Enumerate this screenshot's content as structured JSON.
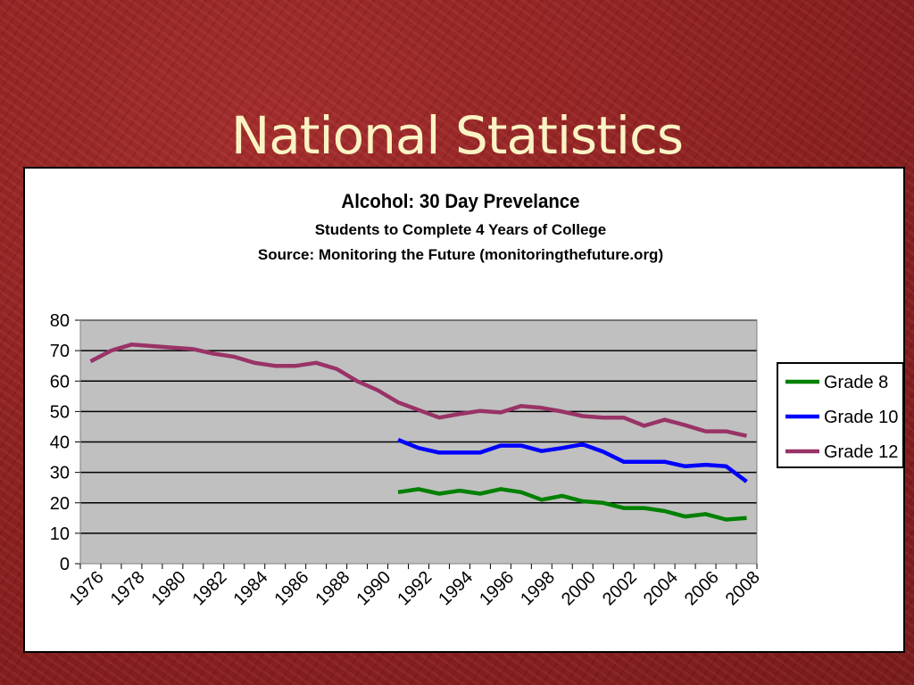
{
  "slide": {
    "title": "National Statistics"
  },
  "chart_data": {
    "type": "line",
    "title": "Alcohol: 30 Day Prevelance",
    "subtitle": "Students to Complete 4 Years of College",
    "source": "Source: Monitoring the Future (monitoringthefuture.org)",
    "xlabel": "",
    "ylabel": "",
    "ylim": [
      0,
      80
    ],
    "yticks": [
      0,
      10,
      20,
      30,
      40,
      50,
      60,
      70,
      80
    ],
    "xlim": [
      1976,
      2009
    ],
    "xticks": [
      "1976",
      "1978",
      "1980",
      "1982",
      "1984",
      "1986",
      "1988",
      "1990",
      "1992",
      "1994",
      "1996",
      "1998",
      "2000",
      "2002",
      "2004",
      "2006",
      "2008"
    ],
    "grid": "horizontal",
    "plot_background": "#c0c0c0",
    "legend_position": "right",
    "series": [
      {
        "name": "Grade 8",
        "color": "#008000",
        "x": [
          1991,
          1992,
          1993,
          1994,
          1995,
          1996,
          1997,
          1998,
          1999,
          2000,
          2001,
          2002,
          2003,
          2004,
          2005,
          2006,
          2007,
          2008
        ],
        "values": [
          23.5,
          24.5,
          23,
          24,
          23,
          24.5,
          23.5,
          21,
          22.3,
          20.5,
          20,
          18.3,
          18.3,
          17.3,
          15.5,
          16.3,
          14.5,
          15
        ]
      },
      {
        "name": "Grade 10",
        "color": "#0000ff",
        "x": [
          1991,
          1992,
          1993,
          1994,
          1995,
          1996,
          1997,
          1998,
          1999,
          2000,
          2001,
          2002,
          2003,
          2004,
          2005,
          2006,
          2007,
          2008
        ],
        "values": [
          40.7,
          38,
          36.5,
          36.5,
          36.5,
          38.8,
          38.8,
          37,
          38,
          39.2,
          36.8,
          33.5,
          33.5,
          33.5,
          32,
          32.5,
          32,
          27
        ]
      },
      {
        "name": "Grade 12",
        "color": "#993366",
        "x": [
          1976,
          1977,
          1978,
          1979,
          1980,
          1981,
          1982,
          1983,
          1984,
          1985,
          1986,
          1987,
          1988,
          1989,
          1990,
          1991,
          1992,
          1993,
          1994,
          1995,
          1996,
          1997,
          1998,
          1999,
          2000,
          2001,
          2002,
          2003,
          2004,
          2005,
          2006,
          2007,
          2008
        ],
        "values": [
          66.5,
          70,
          72,
          71.5,
          71,
          70.5,
          69,
          68,
          66,
          65,
          65,
          66,
          64,
          60,
          57,
          53,
          50.5,
          48,
          49.2,
          50.2,
          49.7,
          51.8,
          51.2,
          50,
          48.5,
          48,
          48,
          45.3,
          47.3,
          45.5,
          43.5,
          43.5,
          42
        ]
      }
    ]
  }
}
